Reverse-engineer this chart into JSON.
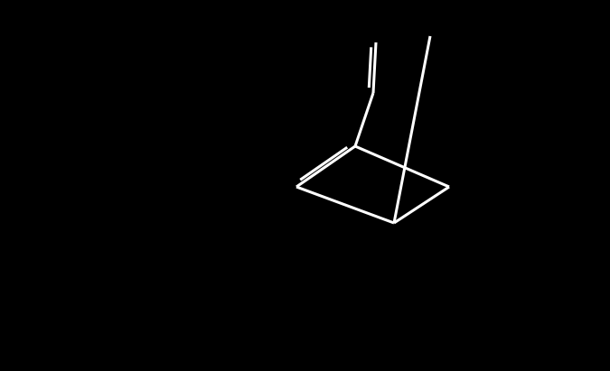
{
  "bg_color": "#000000",
  "bond_color": "#ffffff",
  "N_color": "#1010ff",
  "O_color": "#ff0000",
  "fig_width": 6.75,
  "fig_height": 4.11,
  "dpi": 100,
  "lw": 2.0,
  "lw2": 3.5
}
